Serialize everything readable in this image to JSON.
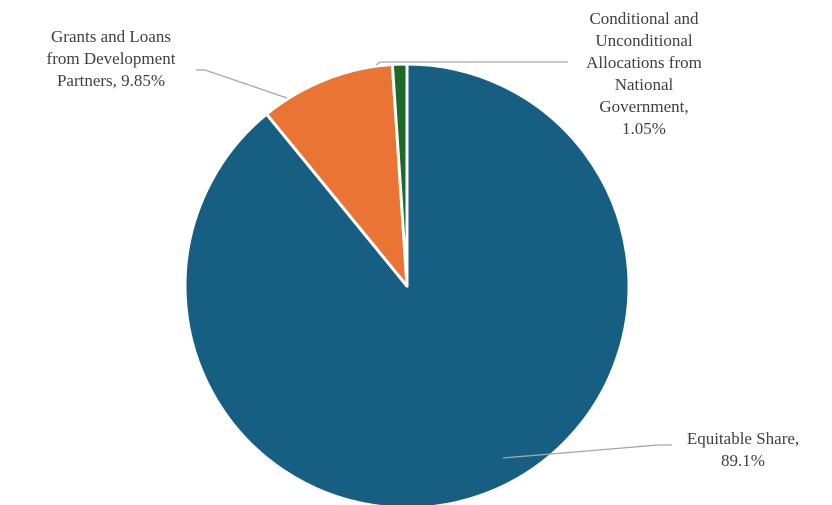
{
  "chart_data": {
    "type": "pie",
    "title": "",
    "slices": [
      {
        "label": "Equitable Share",
        "value": 89.1,
        "display": "89.1%",
        "color": "#175f82"
      },
      {
        "label": "Grants and Loans from Development Partners",
        "value": 9.85,
        "display": "9.85%",
        "color": "#e97434"
      },
      {
        "label": "Conditional and Unconditional Allocations from National Government",
        "value": 1.05,
        "display": "1.05%",
        "color": "#1b6a27"
      }
    ],
    "start_angle_deg": 0,
    "direction": "clockwise",
    "legend": "none"
  },
  "labels": {
    "equitable_share": "Equitable Share,\n89.1%",
    "grants_loans": "Grants and Loans\nfrom Development\nPartners, 9.85%",
    "conditional_allocations": "Conditional and\nUnconditional\nAllocations from\nNational\nGovernment,\n1.05%"
  }
}
